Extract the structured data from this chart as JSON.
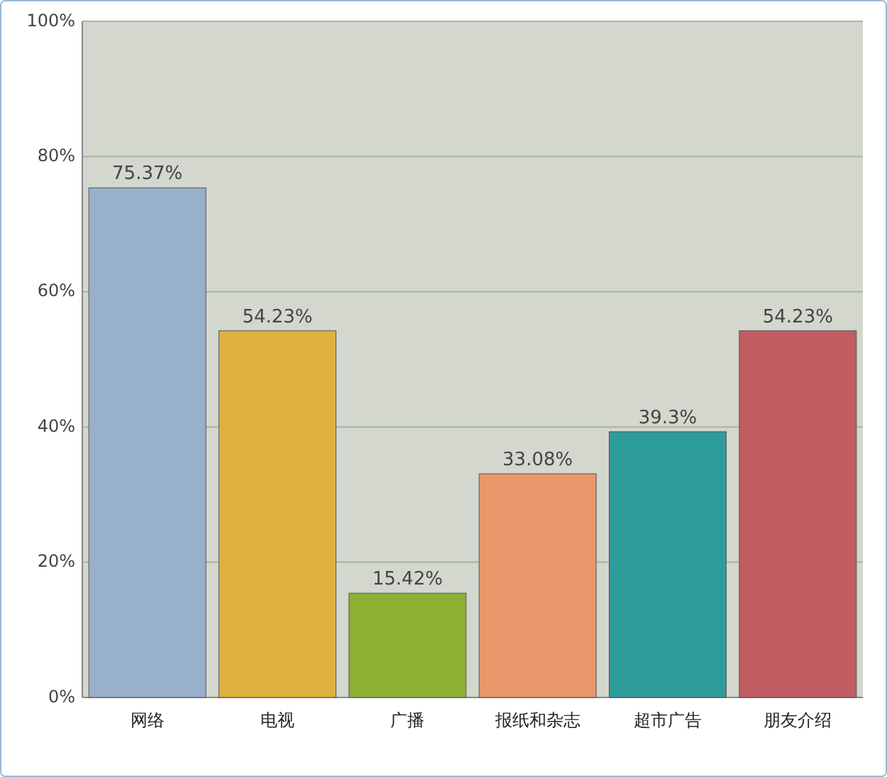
{
  "chart_data": {
    "type": "bar",
    "categories": [
      "网络",
      "电视",
      "广播",
      "报纸和杂志",
      "超市广告",
      "朋友介绍"
    ],
    "values": [
      75.37,
      54.23,
      15.42,
      33.08,
      39.3,
      54.23
    ],
    "value_labels": [
      "75.37%",
      "54.23%",
      "15.42%",
      "33.08%",
      "39.3%",
      "54.23%"
    ],
    "colors": [
      "#98b0cc",
      "#e0b040",
      "#8cb032",
      "#e8976a",
      "#2f9c9c",
      "#c25c62"
    ],
    "ylim": [
      0,
      100
    ],
    "yticks": [
      {
        "value": 0,
        "label": "0%"
      },
      {
        "value": 20,
        "label": "20%"
      },
      {
        "value": 40,
        "label": "40%"
      },
      {
        "value": 60,
        "label": "60%"
      },
      {
        "value": 80,
        "label": "80%"
      },
      {
        "value": 100,
        "label": "100%"
      }
    ],
    "grid": "y"
  }
}
